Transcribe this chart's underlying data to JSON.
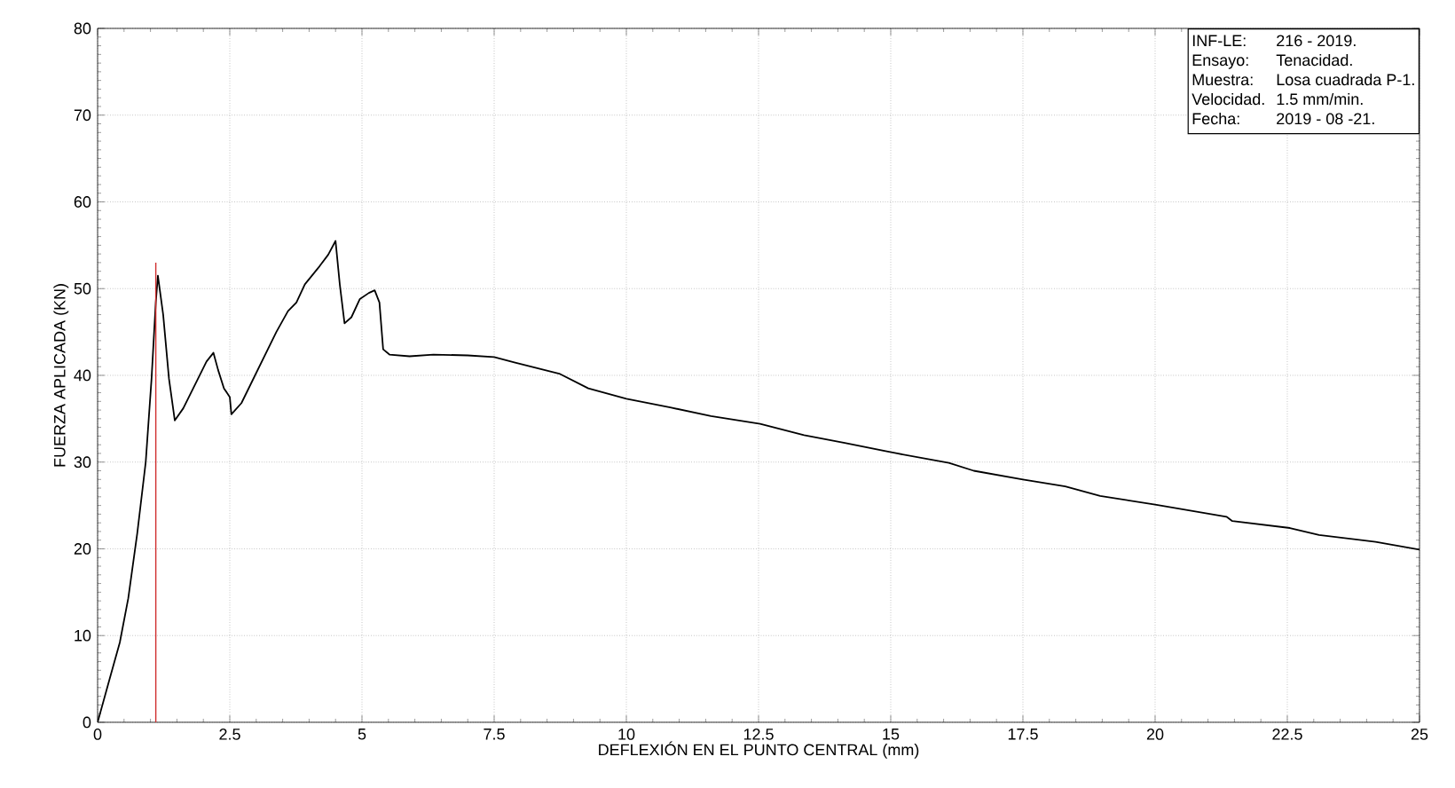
{
  "chart_data": {
    "type": "line",
    "xlabel": "DEFLEXIÓN EN EL PUNTO CENTRAL (mm)",
    "ylabel": "FUERZA APLICADA (KN)",
    "xlim": [
      0,
      25
    ],
    "ylim": [
      0,
      80
    ],
    "xticks": [
      0,
      2.5,
      5,
      7.5,
      10,
      12.5,
      15,
      17.5,
      20,
      22.5,
      25
    ],
    "yticks": [
      0,
      10,
      20,
      30,
      40,
      50,
      60,
      70,
      80
    ],
    "grid": true,
    "series": [
      {
        "color": "#000000",
        "x": [
          0,
          0.25,
          0.42,
          0.58,
          0.75,
          0.91,
          1.02,
          1.1,
          1.14,
          1.24,
          1.35,
          1.46,
          1.62,
          1.84,
          2.06,
          2.19,
          2.28,
          2.39,
          2.5,
          2.53,
          2.72,
          3.05,
          3.38,
          3.6,
          3.76,
          3.92,
          4.2,
          4.36,
          4.5,
          4.58,
          4.67,
          4.8,
          4.96,
          5.13,
          5.24,
          5.33,
          5.4,
          5.52,
          5.9,
          6.35,
          7.0,
          7.5,
          7.88,
          8.73,
          9.28,
          10,
          10.83,
          11.6,
          12.53,
          13.36,
          14.13,
          15.12,
          16.1,
          16.57,
          17.5,
          18.3,
          18.96,
          20,
          21.35,
          21.46,
          22.55,
          23.1,
          24.17,
          25
        ],
        "values": [
          0,
          5.5,
          9.2,
          14.3,
          21.8,
          30,
          39.6,
          48.4,
          51.5,
          47,
          39.6,
          34.8,
          36.2,
          38.9,
          41.6,
          42.6,
          40.6,
          38.5,
          37.5,
          35.5,
          36.8,
          40.9,
          45,
          47.4,
          48.4,
          50.5,
          52.6,
          53.9,
          55.5,
          50.5,
          46,
          46.7,
          48.8,
          49.5,
          49.8,
          48.4,
          43,
          42.4,
          42.2,
          42.4,
          42.3,
          42.1,
          41.5,
          40.2,
          38.5,
          37.3,
          36.3,
          35.3,
          34.4,
          33.1,
          32.2,
          31,
          29.9,
          29,
          28,
          27.2,
          26.1,
          25.1,
          23.7,
          23.2,
          22.4,
          21.6,
          20.8,
          19.9
        ]
      },
      {
        "color": "#d03030",
        "x": [
          1.1,
          1.1
        ],
        "values": [
          0,
          53
        ]
      }
    ],
    "annotations": [
      "INF-LE:",
      "216 - 2019.",
      "Ensayo:",
      "Tenacidad.",
      "Muestra:",
      "Losa cuadrada P-1.",
      "Velocidad.",
      "1.5 mm/min.",
      "Fecha:",
      "2019 - 08 -21."
    ]
  }
}
